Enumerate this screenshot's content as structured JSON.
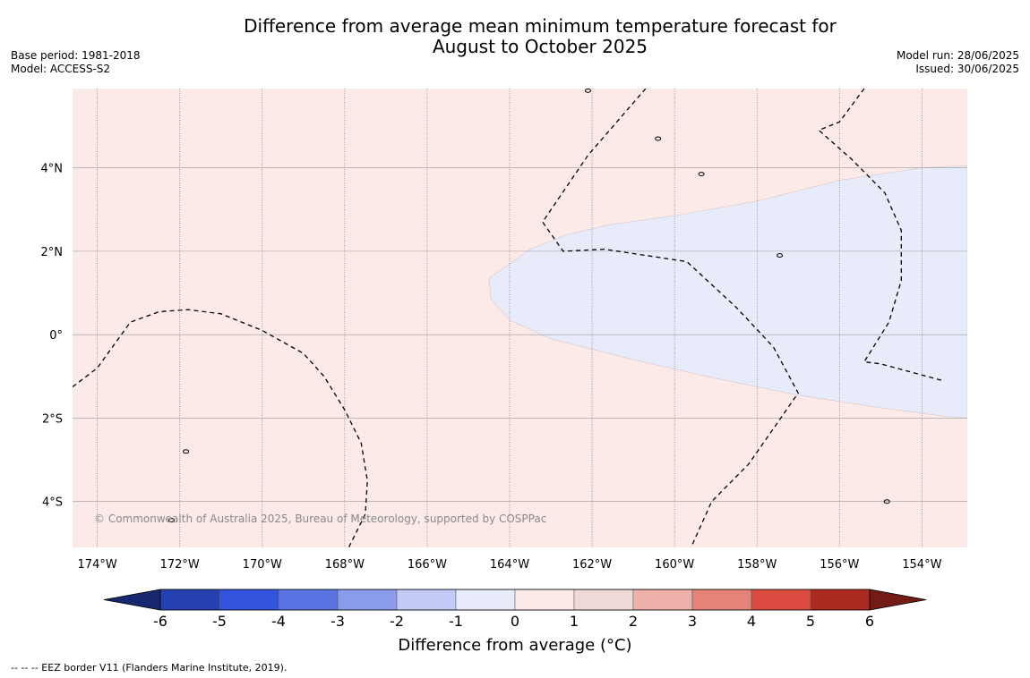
{
  "title": {
    "line1": "Difference from average mean minimum temperature forecast for",
    "line2": "August to October 2025"
  },
  "meta": {
    "base_period": "Base period: 1981-2018",
    "model": "Model: ACCESS-S2",
    "model_run": "Model run: 28/06/2025",
    "issued": "Issued: 30/06/2025"
  },
  "map": {
    "lon_range": [
      -174.6,
      -152.9
    ],
    "lat_range": [
      -5.1,
      5.9
    ],
    "lat_ticks": [
      {
        "value": 4,
        "label": "4°N"
      },
      {
        "value": 2,
        "label": "2°N"
      },
      {
        "value": 0,
        "label": "0°"
      },
      {
        "value": -2,
        "label": "2°S"
      },
      {
        "value": -4,
        "label": "4°S"
      }
    ],
    "lon_ticks": [
      {
        "value": -174,
        "label": "174°W"
      },
      {
        "value": -172,
        "label": "172°W"
      },
      {
        "value": -170,
        "label": "170°W"
      },
      {
        "value": -168,
        "label": "168°W"
      },
      {
        "value": -166,
        "label": "166°W"
      },
      {
        "value": -164,
        "label": "164°W"
      },
      {
        "value": -162,
        "label": "162°W"
      },
      {
        "value": -160,
        "label": "160°W"
      },
      {
        "value": -158,
        "label": "158°W"
      },
      {
        "value": -156,
        "label": "156°W"
      },
      {
        "value": -154,
        "label": "154°W"
      }
    ],
    "fill_background_color": "#fbeae7",
    "cool_region_color": "#e7ebfa",
    "cool_region_category": "-1 to 0",
    "background_category": "0 to 1",
    "cool_region_outline": [
      [
        -152.9,
        4.05
      ],
      [
        -154,
        4.0
      ],
      [
        -156,
        3.7
      ],
      [
        -158,
        3.2
      ],
      [
        -160,
        2.85
      ],
      [
        -161.5,
        2.65
      ],
      [
        -162.6,
        2.4
      ],
      [
        -163.5,
        2.05
      ],
      [
        -164.5,
        1.35
      ],
      [
        -164.45,
        0.85
      ],
      [
        -164,
        0.35
      ],
      [
        -163,
        -0.1
      ],
      [
        -161,
        -0.6
      ],
      [
        -159,
        -1.05
      ],
      [
        -157,
        -1.45
      ],
      [
        -155,
        -1.75
      ],
      [
        -153.5,
        -1.95
      ],
      [
        -152.9,
        -2.0
      ]
    ],
    "eez_lines": [
      [
        [
          -174.6,
          -1.25
        ],
        [
          -174,
          -0.8
        ],
        [
          -173.2,
          0.3
        ],
        [
          -172.5,
          0.55
        ],
        [
          -171.8,
          0.6
        ],
        [
          -171,
          0.5
        ],
        [
          -170,
          0.1
        ],
        [
          -169,
          -0.45
        ],
        [
          -168.5,
          -1.0
        ],
        [
          -168,
          -1.8
        ],
        [
          -167.6,
          -2.6
        ],
        [
          -167.45,
          -3.5
        ],
        [
          -167.5,
          -4.3
        ],
        [
          -167.9,
          -5.1
        ]
      ],
      [
        [
          -160.7,
          5.9
        ],
        [
          -162.1,
          4.3
        ],
        [
          -163.2,
          2.7
        ],
        [
          -162.7,
          2.0
        ],
        [
          -161.7,
          2.05
        ],
        [
          -159.7,
          1.75
        ],
        [
          -158.5,
          0.65
        ],
        [
          -157.6,
          -0.3
        ],
        [
          -157.0,
          -1.4
        ],
        [
          -158.2,
          -3.1
        ],
        [
          -159.1,
          -4.0
        ],
        [
          -159.6,
          -5.1
        ]
      ],
      [
        [
          -155.4,
          5.9
        ],
        [
          -156.0,
          5.1
        ],
        [
          -156.5,
          4.9
        ],
        [
          -155.7,
          4.2
        ],
        [
          -154.9,
          3.4
        ],
        [
          -154.5,
          2.5
        ],
        [
          -154.5,
          1.3
        ],
        [
          -154.8,
          0.3
        ],
        [
          -155.4,
          -0.65
        ],
        [
          -155,
          -0.7
        ],
        [
          -153.5,
          -1.1
        ]
      ]
    ],
    "islands": [
      {
        "lon": -159.35,
        "lat": 3.85
      },
      {
        "lon": -157.45,
        "lat": 1.9
      },
      {
        "lon": -171.85,
        "lat": -2.8
      },
      {
        "lon": -172.2,
        "lat": -4.45
      },
      {
        "lon": -154.85,
        "lat": -4.0
      },
      {
        "lon": -162.1,
        "lat": 5.85
      },
      {
        "lon": -160.4,
        "lat": 4.7
      }
    ]
  },
  "copyright": "© Commonwealth of Australia 2025, Bureau of Meteorology, supported by COSPPac",
  "colorbar": {
    "title": "Difference from average (°C)",
    "ticks": [
      "-6",
      "-5",
      "-4",
      "-3",
      "-2",
      "-1",
      "0",
      "1",
      "2",
      "3",
      "4",
      "5",
      "6"
    ],
    "colors": [
      "#263fb0",
      "#3253de",
      "#5973e3",
      "#8a9be9",
      "#c2caf5",
      "#e7ebfa",
      "#fbeae7",
      "#efd9d6",
      "#eeb1aa",
      "#e58378",
      "#dd4c40",
      "#ac2a22"
    ],
    "under_color": "#17286e",
    "over_color": "#731b15"
  },
  "footer_note": "-- -- -- EEZ border V11 (Flanders Marine Institute, 2019)."
}
